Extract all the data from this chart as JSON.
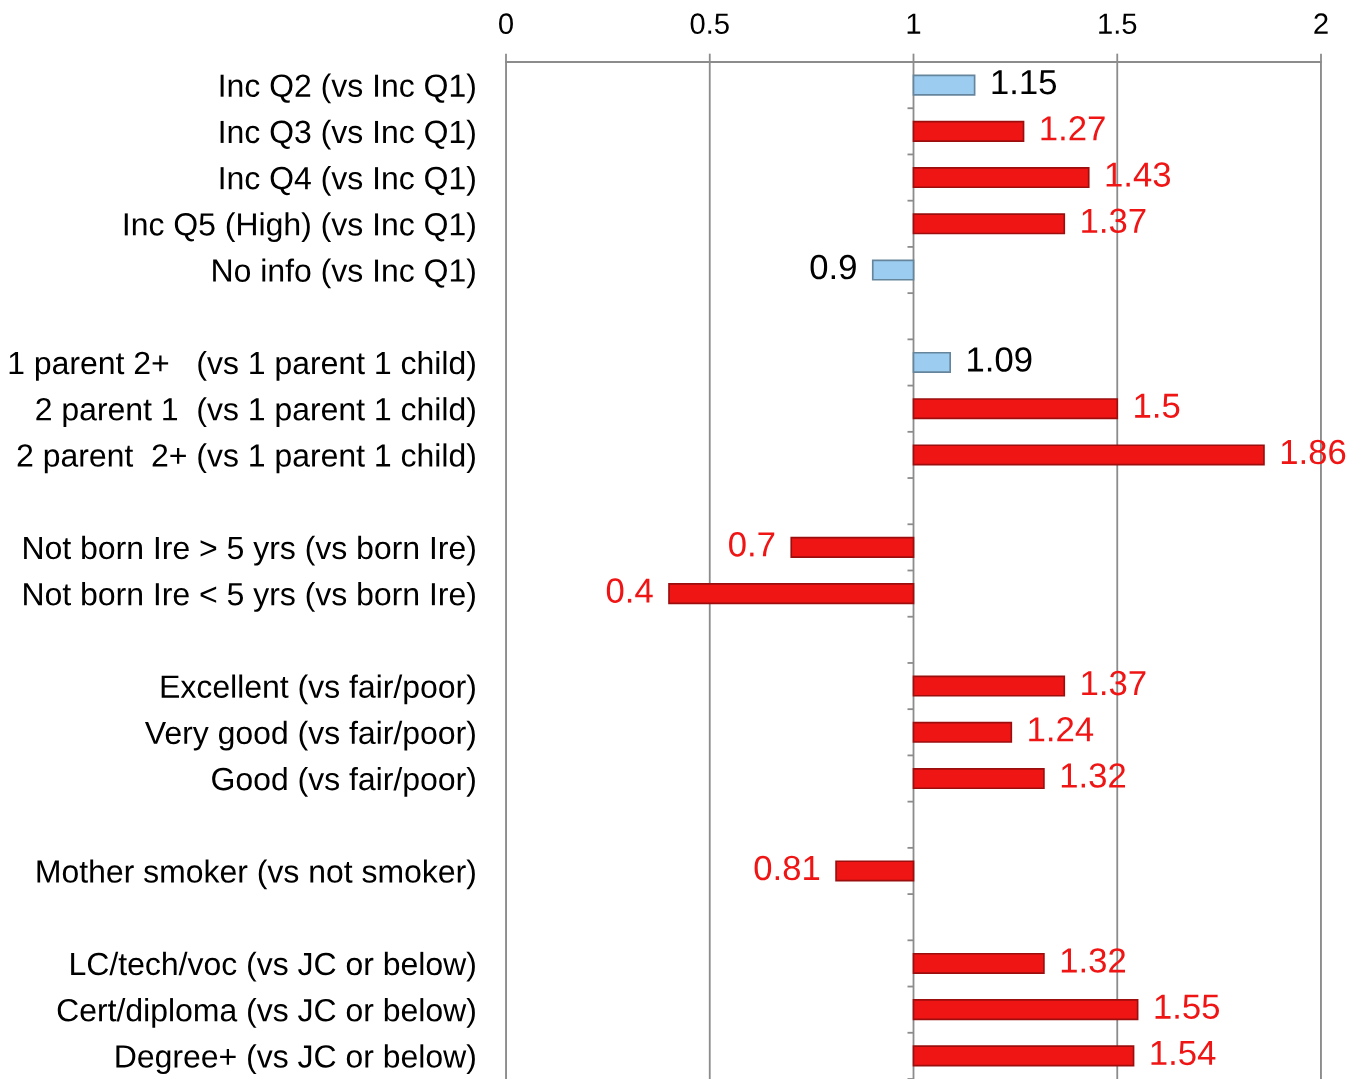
{
  "chart_data": {
    "type": "bar",
    "orientation": "horizontal",
    "categories": [
      "Inc Q2 (vs Inc Q1)",
      "Inc Q3 (vs Inc Q1)",
      "Inc Q4 (vs Inc Q1)",
      "Inc Q5 (High) (vs Inc Q1)",
      "No info (vs Inc Q1)",
      null,
      "1 parent 2+   (vs 1 parent 1 child)",
      "2 parent 1  (vs 1 parent 1 child)",
      "2 parent  2+ (vs 1 parent 1 child)",
      null,
      "Not born Ire > 5 yrs (vs born Ire)",
      "Not born Ire < 5 yrs (vs born Ire)",
      null,
      "Excellent (vs fair/poor)",
      "Very good (vs fair/poor)",
      "Good (vs fair/poor)",
      null,
      "Mother smoker (vs not smoker)",
      null,
      "LC/tech/voc (vs JC or below)",
      "Cert/diploma (vs JC or below)",
      "Degree+ (vs JC or below)"
    ],
    "base": [
      1,
      1,
      1,
      1,
      1,
      null,
      1,
      1,
      1,
      null,
      1,
      1,
      null,
      1,
      1,
      1,
      null,
      1,
      null,
      1,
      1,
      1
    ],
    "values": [
      0.15,
      0.27,
      0.43,
      0.37,
      -0.1,
      null,
      0.09,
      0.5,
      0.86,
      null,
      -0.3,
      -0.6,
      null,
      0.37,
      0.24,
      0.32,
      null,
      -0.19,
      null,
      0.32,
      0.55,
      0.54
    ],
    "value_labels": [
      "1.15",
      "1.27",
      "1.43",
      "1.37",
      "0.9",
      null,
      "1.09",
      "1.5",
      "1.86",
      null,
      "0.7",
      "0.4",
      null,
      "1.37",
      "1.24",
      "1.32",
      null,
      "0.81",
      null,
      "1.32",
      "1.55",
      "1.54"
    ],
    "colors": [
      "#9ccdf0",
      "#f01515",
      "#f01515",
      "#f01515",
      "#9ccdf0",
      null,
      "#9ccdf0",
      "#f01515",
      "#f01515",
      null,
      "#f01515",
      "#f01515",
      null,
      "#f01515",
      "#f01515",
      "#f01515",
      null,
      "#f01515",
      null,
      "#f01515",
      "#f01515",
      "#f01515"
    ],
    "xlim": [
      0,
      2
    ],
    "xticks": [
      0,
      0.5,
      1,
      1.5,
      2
    ],
    "grid": "x"
  }
}
